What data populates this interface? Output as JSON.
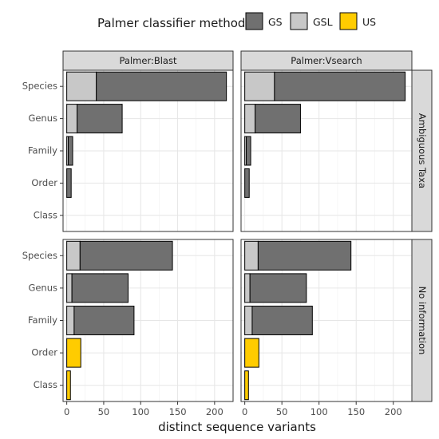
{
  "chart_data": {
    "type": "bar",
    "orientation": "horizontal",
    "stacked": true,
    "xlabel": "distinct sequence variants",
    "xlim": [
      -5,
      225
    ],
    "xticks": [
      0,
      50,
      100,
      150,
      200
    ],
    "grid": true,
    "legend": {
      "title": "Palmer classifier method",
      "position": "top",
      "items": [
        {
          "name": "GS",
          "color": "#707070"
        },
        {
          "name": "GSL",
          "color": "#c8c8c8"
        },
        {
          "name": "US",
          "color": "#ffcc00"
        }
      ]
    },
    "column_facets": [
      "Palmer:Blast",
      "Palmer:Vsearch"
    ],
    "row_facets": [
      "Ambiguous Taxa",
      "No information"
    ],
    "categories": [
      "Species",
      "Genus",
      "Family",
      "Order",
      "Class"
    ],
    "panels": [
      {
        "column": "Palmer:Blast",
        "row": "Ambiguous Taxa",
        "bars": [
          {
            "category": "Species",
            "segments": [
              {
                "method": "GSL",
                "value": 40
              },
              {
                "method": "GS",
                "value": 176
              }
            ]
          },
          {
            "category": "Genus",
            "segments": [
              {
                "method": "GSL",
                "value": 14
              },
              {
                "method": "GS",
                "value": 61
              }
            ]
          },
          {
            "category": "Family",
            "segments": [
              {
                "method": "GSL",
                "value": 2
              },
              {
                "method": "GS",
                "value": 6
              }
            ]
          },
          {
            "category": "Order",
            "segments": [
              {
                "method": "GS",
                "value": 6
              }
            ]
          },
          {
            "category": "Class",
            "segments": []
          }
        ]
      },
      {
        "column": "Palmer:Vsearch",
        "row": "Ambiguous Taxa",
        "bars": [
          {
            "category": "Species",
            "segments": [
              {
                "method": "GSL",
                "value": 40
              },
              {
                "method": "GS",
                "value": 176
              }
            ]
          },
          {
            "category": "Genus",
            "segments": [
              {
                "method": "GSL",
                "value": 14
              },
              {
                "method": "GS",
                "value": 61
              }
            ]
          },
          {
            "category": "Family",
            "segments": [
              {
                "method": "GSL",
                "value": 2
              },
              {
                "method": "GS",
                "value": 6
              }
            ]
          },
          {
            "category": "Order",
            "segments": [
              {
                "method": "GS",
                "value": 6
              }
            ]
          },
          {
            "category": "Class",
            "segments": []
          }
        ]
      },
      {
        "column": "Palmer:Blast",
        "row": "No information",
        "bars": [
          {
            "category": "Species",
            "segments": [
              {
                "method": "GSL",
                "value": 18
              },
              {
                "method": "GS",
                "value": 125
              }
            ]
          },
          {
            "category": "Genus",
            "segments": [
              {
                "method": "GSL",
                "value": 7
              },
              {
                "method": "GS",
                "value": 76
              }
            ]
          },
          {
            "category": "Family",
            "segments": [
              {
                "method": "GSL",
                "value": 10
              },
              {
                "method": "GS",
                "value": 81
              }
            ]
          },
          {
            "category": "Order",
            "segments": [
              {
                "method": "US",
                "value": 19
              }
            ]
          },
          {
            "category": "Class",
            "segments": [
              {
                "method": "US",
                "value": 5
              }
            ]
          }
        ]
      },
      {
        "column": "Palmer:Vsearch",
        "row": "No information",
        "bars": [
          {
            "category": "Species",
            "segments": [
              {
                "method": "GSL",
                "value": 18
              },
              {
                "method": "GS",
                "value": 125
              }
            ]
          },
          {
            "category": "Genus",
            "segments": [
              {
                "method": "GSL",
                "value": 7
              },
              {
                "method": "GS",
                "value": 76
              }
            ]
          },
          {
            "category": "Family",
            "segments": [
              {
                "method": "GSL",
                "value": 10
              },
              {
                "method": "GS",
                "value": 81
              }
            ]
          },
          {
            "category": "Order",
            "segments": [
              {
                "method": "US",
                "value": 19
              }
            ]
          },
          {
            "category": "Class",
            "segments": [
              {
                "method": "US",
                "value": 5
              }
            ]
          }
        ]
      }
    ]
  }
}
